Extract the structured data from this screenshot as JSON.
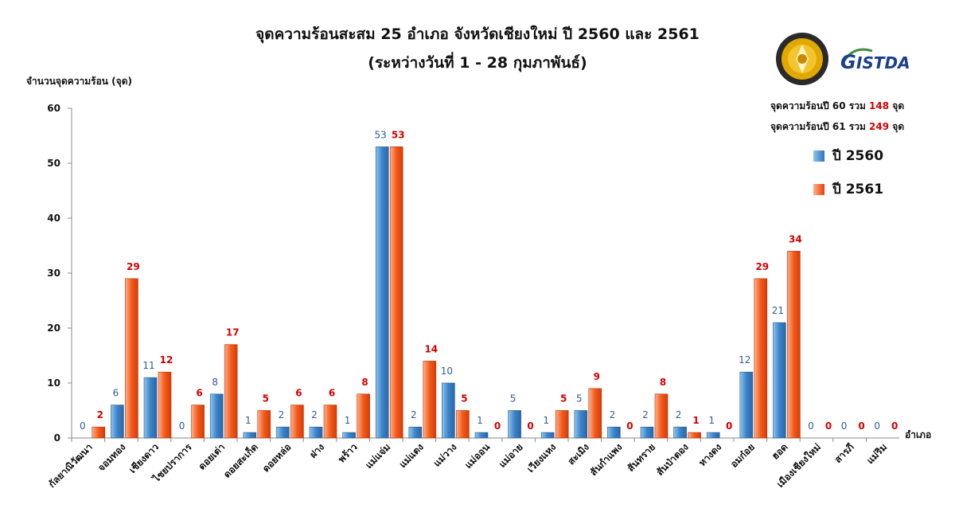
{
  "title": "จุดความร้อนสะสม 25 อำเภอ จังหวัดเชียงใหม่ ปี 2560 และ 2561",
  "subtitle": "(ระหว่างวันที่ 1 - 28 กุมภาพันธ์)",
  "summary": {
    "line1_prefix": "จุดความร้อนปี 60 รวม",
    "line1_value": "148",
    "line1_suffix": "จุด",
    "line2_prefix": "จุดความร้อนปี 61 รวม",
    "line2_value": "249",
    "line2_suffix": "จุด"
  },
  "legend": {
    "series1": "ปี 2560",
    "series2": "ปี 2561"
  },
  "colors": {
    "series1": "#3b84c8",
    "series2": "#f25a1a",
    "label1": "#2e5d9a",
    "label2": "#d40000"
  },
  "logo_seal_text": "MINISTRY OF SCIENCE AND TECHNOLOGY",
  "logo_gistda_text": "GISTDA",
  "chart_data": {
    "type": "bar",
    "ylabel": "จำนวนจุดความร้อน (จุด)",
    "xlabel": "อำเภอ",
    "ylim": [
      0,
      60
    ],
    "yticks": [
      0,
      10,
      20,
      30,
      40,
      50,
      60
    ],
    "grid": false,
    "legend_position": "right",
    "categories": [
      "กัลยาณิวัฒนา",
      "จอมทอง",
      "เชียงดาว",
      "ไชยปราการ",
      "ดอยเต่า",
      "ดอยสะเก็ด",
      "ดอยหล่อ",
      "ฝาง",
      "พร้าว",
      "แม่แจ่ม",
      "แม่แตง",
      "แม่วาง",
      "แม่ออน",
      "แม่อาย",
      "เวียงแหง",
      "สะเมิง",
      "สันกำแพง",
      "สันทราย",
      "สันป่าตอง",
      "หางดง",
      "อมก๋อย",
      "ฮอด",
      "เมืองเชียงใหม่",
      "สารภี",
      "แม่ริม"
    ],
    "series": [
      {
        "name": "ปี 2560",
        "values": [
          0,
          6,
          11,
          0,
          8,
          1,
          2,
          2,
          1,
          53,
          2,
          10,
          1,
          5,
          1,
          5,
          2,
          2,
          2,
          1,
          12,
          21,
          0,
          0,
          0
        ]
      },
      {
        "name": "ปี 2561",
        "values": [
          2,
          29,
          12,
          6,
          17,
          5,
          6,
          6,
          8,
          53,
          14,
          5,
          0,
          0,
          5,
          9,
          0,
          8,
          1,
          0,
          29,
          34,
          0,
          0,
          0
        ]
      }
    ]
  }
}
